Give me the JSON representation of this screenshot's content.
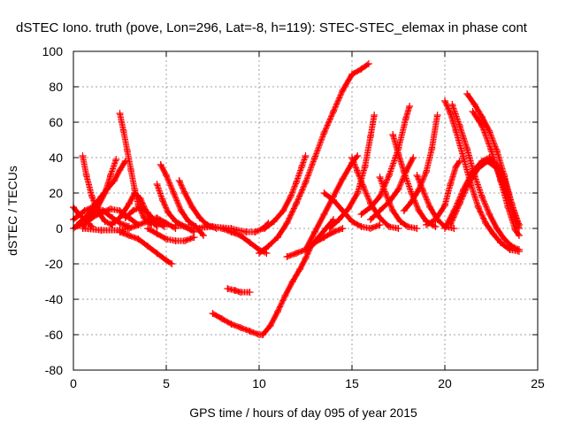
{
  "chart_data": {
    "type": "scatter",
    "title": "dSTEC Iono. truth (pove, Lon=296, Lat=-8, h=119): STEC-STEC_elemax in phase cont",
    "xlabel": "GPS time / hours of day 095 of year 2015",
    "ylabel": "dSTEC  / TECUs",
    "xlim": [
      0,
      25
    ],
    "ylim": [
      -80,
      100
    ],
    "xticks": [
      0,
      5,
      10,
      15,
      20,
      25
    ],
    "yticks": [
      -80,
      -60,
      -40,
      -20,
      0,
      20,
      40,
      60,
      80,
      100
    ],
    "grid": true,
    "marker": "+",
    "color": "#ff0000",
    "series": [
      {
        "points": [
          [
            0.0,
            12
          ],
          [
            0.3,
            8
          ],
          [
            0.7,
            4
          ],
          [
            1.0,
            1
          ]
        ]
      },
      {
        "points": [
          [
            0.5,
            41
          ],
          [
            0.7,
            30
          ],
          [
            1.0,
            18
          ],
          [
            1.3,
            10
          ],
          [
            1.7,
            4
          ],
          [
            2.1,
            2
          ]
        ]
      },
      {
        "points": [
          [
            0.0,
            0
          ],
          [
            0.5,
            3
          ],
          [
            1.0,
            8
          ],
          [
            1.3,
            12
          ],
          [
            1.7,
            20
          ],
          [
            2.0,
            30
          ],
          [
            2.3,
            39
          ]
        ]
      },
      {
        "points": [
          [
            0.2,
            2
          ],
          [
            0.8,
            8
          ],
          [
            1.2,
            14
          ],
          [
            1.5,
            18
          ],
          [
            1.8,
            22
          ],
          [
            2.2,
            27
          ],
          [
            2.5,
            33
          ],
          [
            2.8,
            38
          ]
        ]
      },
      {
        "points": [
          [
            0.0,
            5
          ],
          [
            0.6,
            10
          ],
          [
            1.0,
            12
          ],
          [
            1.6,
            10
          ],
          [
            2.1,
            6
          ],
          [
            2.5,
            3
          ],
          [
            3.0,
            1
          ]
        ]
      },
      {
        "points": [
          [
            0.5,
            1
          ],
          [
            1.0,
            6
          ],
          [
            1.5,
            9
          ],
          [
            2.0,
            11
          ],
          [
            2.5,
            10
          ],
          [
            3.0,
            6
          ],
          [
            3.5,
            2
          ]
        ]
      },
      {
        "points": [
          [
            2.5,
            65
          ],
          [
            2.7,
            55
          ],
          [
            2.9,
            44
          ],
          [
            3.1,
            33
          ],
          [
            3.3,
            22
          ],
          [
            3.5,
            13
          ],
          [
            3.8,
            6
          ],
          [
            4.2,
            2
          ]
        ]
      },
      {
        "points": [
          [
            2.0,
            2
          ],
          [
            2.5,
            6
          ],
          [
            3.0,
            14
          ],
          [
            3.3,
            20
          ],
          [
            3.6,
            17
          ],
          [
            4.0,
            8
          ],
          [
            4.5,
            1
          ]
        ]
      },
      {
        "points": [
          [
            2.8,
            6
          ],
          [
            3.2,
            10
          ],
          [
            3.6,
            12
          ],
          [
            4.0,
            9
          ],
          [
            4.4,
            4
          ],
          [
            4.9,
            1
          ]
        ]
      },
      {
        "points": [
          [
            2.5,
            -2
          ],
          [
            3.0,
            -4
          ],
          [
            3.5,
            -6
          ],
          [
            4.0,
            -10
          ],
          [
            4.5,
            -14
          ],
          [
            5.0,
            -18
          ],
          [
            5.3,
            -20
          ]
        ]
      },
      {
        "points": [
          [
            0.5,
            0
          ],
          [
            1.5,
            -1
          ],
          [
            2.5,
            -1
          ],
          [
            3.0,
            0
          ],
          [
            3.5,
            2
          ],
          [
            4.0,
            4
          ],
          [
            4.5,
            6
          ],
          [
            5.0,
            3
          ],
          [
            5.5,
            0
          ]
        ]
      },
      {
        "points": [
          [
            4.5,
            25
          ],
          [
            4.8,
            16
          ],
          [
            5.1,
            9
          ],
          [
            5.5,
            4
          ],
          [
            6.0,
            1
          ],
          [
            6.5,
            -2
          ]
        ]
      },
      {
        "points": [
          [
            4.7,
            36
          ],
          [
            5.0,
            30
          ],
          [
            5.4,
            20
          ],
          [
            5.8,
            10
          ],
          [
            6.2,
            4
          ],
          [
            6.6,
            1
          ],
          [
            7.0,
            -4
          ]
        ]
      },
      {
        "points": [
          [
            5.7,
            27
          ],
          [
            6.0,
            20
          ],
          [
            6.4,
            12
          ],
          [
            6.8,
            6
          ],
          [
            7.2,
            2
          ],
          [
            7.7,
            0
          ]
        ]
      },
      {
        "points": [
          [
            4.0,
            0
          ],
          [
            4.5,
            -3
          ],
          [
            5.0,
            -6
          ],
          [
            5.5,
            -7
          ],
          [
            6.0,
            -7
          ],
          [
            6.5,
            -5
          ]
        ]
      },
      {
        "points": [
          [
            5.5,
            2
          ],
          [
            6.5,
            0
          ],
          [
            7.5,
            1
          ],
          [
            8.5,
            0
          ],
          [
            9.3,
            -2
          ],
          [
            9.8,
            -2
          ],
          [
            10.2,
            0
          ],
          [
            10.5,
            3
          ]
        ]
      },
      {
        "points": [
          [
            7.0,
            1
          ],
          [
            7.5,
            1
          ],
          [
            8.0,
            0
          ],
          [
            8.5,
            -2
          ],
          [
            9.0,
            -4
          ],
          [
            9.5,
            -8
          ],
          [
            10.0,
            -12
          ],
          [
            10.4,
            -14
          ]
        ]
      },
      {
        "points": [
          [
            10.0,
            -14
          ],
          [
            10.5,
            -10
          ],
          [
            11.0,
            -5
          ],
          [
            11.5,
            3
          ],
          [
            12.0,
            14
          ],
          [
            12.5,
            26
          ],
          [
            13.0,
            40
          ],
          [
            13.5,
            54
          ],
          [
            14.0,
            66
          ],
          [
            14.5,
            78
          ],
          [
            15.0,
            87
          ],
          [
            15.5,
            90
          ],
          [
            15.9,
            93
          ]
        ]
      },
      {
        "points": [
          [
            10.3,
            0
          ],
          [
            10.8,
            4
          ],
          [
            11.3,
            10
          ],
          [
            11.7,
            18
          ],
          [
            12.0,
            26
          ],
          [
            12.3,
            35
          ],
          [
            12.5,
            41
          ]
        ]
      },
      {
        "points": [
          [
            8.3,
            -34
          ],
          [
            8.7,
            -35
          ],
          [
            9.0,
            -36
          ],
          [
            9.5,
            -36
          ]
        ]
      },
      {
        "points": [
          [
            7.5,
            -48
          ],
          [
            8.0,
            -51
          ],
          [
            8.5,
            -54
          ],
          [
            9.0,
            -56
          ],
          [
            9.5,
            -58
          ],
          [
            10.0,
            -60
          ],
          [
            10.2,
            -60
          ]
        ]
      },
      {
        "points": [
          [
            10.2,
            -60
          ],
          [
            10.6,
            -55
          ],
          [
            11.0,
            -47
          ],
          [
            11.4,
            -38
          ],
          [
            11.8,
            -30
          ],
          [
            12.2,
            -23
          ],
          [
            12.5,
            -17
          ],
          [
            12.8,
            -10
          ],
          [
            13.2,
            -5
          ],
          [
            13.6,
            0
          ],
          [
            14.0,
            5
          ]
        ]
      },
      {
        "points": [
          [
            11.5,
            -16
          ],
          [
            12.0,
            -14
          ],
          [
            12.5,
            -12
          ],
          [
            13.0,
            -8
          ],
          [
            13.5,
            -5
          ],
          [
            14.0,
            -2
          ],
          [
            14.5,
            0
          ]
        ]
      },
      {
        "points": [
          [
            12.5,
            -12
          ],
          [
            13.0,
            -2
          ],
          [
            13.5,
            8
          ],
          [
            14.0,
            18
          ],
          [
            14.5,
            28
          ],
          [
            15.0,
            37
          ],
          [
            15.3,
            41
          ]
        ]
      },
      {
        "points": [
          [
            13.5,
            20
          ],
          [
            14.0,
            16
          ],
          [
            14.5,
            10
          ],
          [
            15.0,
            4
          ],
          [
            15.5,
            1
          ],
          [
            16.0,
            0
          ],
          [
            16.5,
            2
          ]
        ]
      },
      {
        "points": [
          [
            13.8,
            0
          ],
          [
            14.3,
            5
          ],
          [
            14.8,
            11
          ],
          [
            15.3,
            20
          ],
          [
            15.7,
            35
          ],
          [
            16.0,
            52
          ],
          [
            16.2,
            64
          ]
        ]
      },
      {
        "points": [
          [
            15.0,
            40
          ],
          [
            15.3,
            32
          ],
          [
            15.6,
            24
          ],
          [
            16.0,
            14
          ],
          [
            16.5,
            6
          ],
          [
            17.0,
            1
          ],
          [
            17.5,
            0
          ]
        ]
      },
      {
        "points": [
          [
            15.5,
            8
          ],
          [
            16.0,
            12
          ],
          [
            16.5,
            18
          ],
          [
            17.0,
            30
          ],
          [
            17.5,
            45
          ],
          [
            17.9,
            62
          ],
          [
            18.1,
            69
          ]
        ]
      },
      {
        "points": [
          [
            16.5,
            29
          ],
          [
            16.8,
            20
          ],
          [
            17.2,
            10
          ],
          [
            17.6,
            4
          ],
          [
            18.0,
            1
          ],
          [
            18.5,
            0
          ]
        ]
      },
      {
        "points": [
          [
            16.0,
            5
          ],
          [
            16.5,
            10
          ],
          [
            17.0,
            15
          ],
          [
            17.5,
            22
          ],
          [
            17.9,
            32
          ],
          [
            18.3,
            40
          ]
        ]
      },
      {
        "points": [
          [
            17.2,
            53
          ],
          [
            17.5,
            42
          ],
          [
            17.8,
            32
          ],
          [
            18.2,
            20
          ],
          [
            18.6,
            10
          ],
          [
            19.0,
            4
          ],
          [
            19.5,
            1
          ]
        ]
      },
      {
        "points": [
          [
            17.8,
            10
          ],
          [
            18.2,
            15
          ],
          [
            18.6,
            22
          ],
          [
            19.0,
            32
          ],
          [
            19.3,
            45
          ],
          [
            19.6,
            64
          ]
        ]
      },
      {
        "points": [
          [
            18.5,
            30
          ],
          [
            18.8,
            22
          ],
          [
            19.2,
            12
          ],
          [
            19.6,
            5
          ],
          [
            20.0,
            1
          ],
          [
            20.5,
            0
          ]
        ]
      },
      {
        "points": [
          [
            19.0,
            2
          ],
          [
            19.5,
            5
          ],
          [
            20.0,
            13
          ],
          [
            20.3,
            25
          ],
          [
            20.6,
            35
          ],
          [
            20.8,
            38
          ]
        ]
      },
      {
        "points": [
          [
            20.0,
            72
          ],
          [
            20.3,
            65
          ],
          [
            20.6,
            55
          ],
          [
            21.0,
            40
          ],
          [
            21.4,
            25
          ],
          [
            21.8,
            12
          ],
          [
            22.2,
            3
          ],
          [
            22.6,
            -3
          ],
          [
            23.0,
            -8
          ],
          [
            23.5,
            -12
          ],
          [
            24.0,
            -13
          ]
        ]
      },
      {
        "points": [
          [
            20.4,
            70
          ],
          [
            20.8,
            58
          ],
          [
            21.2,
            45
          ],
          [
            21.6,
            30
          ],
          [
            22.0,
            18
          ],
          [
            22.4,
            8
          ],
          [
            22.8,
            0
          ],
          [
            23.2,
            -6
          ],
          [
            23.6,
            -10
          ],
          [
            24.0,
            -12
          ]
        ]
      },
      {
        "points": [
          [
            21.2,
            76
          ],
          [
            21.6,
            70
          ],
          [
            22.0,
            63
          ],
          [
            22.4,
            55
          ],
          [
            22.8,
            44
          ],
          [
            23.2,
            30
          ],
          [
            23.6,
            14
          ],
          [
            24.0,
            0
          ]
        ]
      },
      {
        "points": [
          [
            21.5,
            66
          ],
          [
            22.0,
            58
          ],
          [
            22.5,
            44
          ],
          [
            23.0,
            27
          ],
          [
            23.4,
            12
          ],
          [
            23.8,
            -1
          ],
          [
            24.0,
            -4
          ]
        ]
      },
      {
        "points": [
          [
            20.0,
            0
          ],
          [
            20.5,
            10
          ],
          [
            21.0,
            22
          ],
          [
            21.5,
            32
          ],
          [
            22.0,
            38
          ],
          [
            22.4,
            40
          ],
          [
            22.8,
            36
          ],
          [
            23.2,
            28
          ],
          [
            23.6,
            14
          ],
          [
            24.0,
            2
          ]
        ]
      },
      {
        "points": [
          [
            20.3,
            2
          ],
          [
            20.8,
            14
          ],
          [
            21.3,
            26
          ],
          [
            21.8,
            34
          ],
          [
            22.3,
            38
          ],
          [
            22.8,
            34
          ],
          [
            23.3,
            20
          ],
          [
            23.8,
            4
          ]
        ]
      }
    ]
  }
}
